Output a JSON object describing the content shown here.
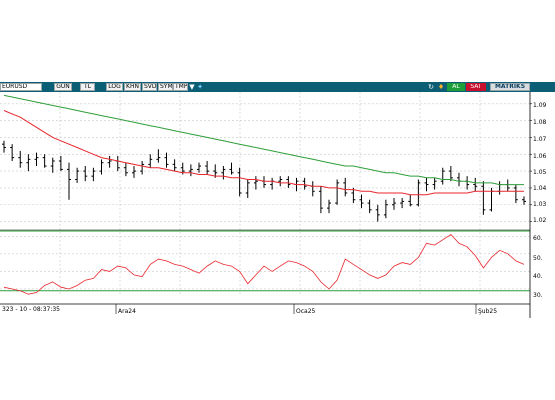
{
  "toolbar": {
    "symbol": "EURUSD",
    "buttons": [
      "GUN",
      "TL",
      "LOG",
      "KHN",
      "SVD",
      "SYM",
      "TMP"
    ],
    "buy_label": "AL",
    "sell_label": "SAT",
    "brand": "MATRIKS",
    "icons": [
      "triangle-down-icon",
      "bird-icon",
      "refresh-icon",
      "fire-icon"
    ]
  },
  "footer": {
    "datetime_label": "323 - 10 - 08:37:35"
  },
  "colors": {
    "toolbar": "#0b5e73",
    "price_bars": "#000000",
    "ma_short": "#e8262c",
    "ma_long": "#2e9e3a",
    "rsi": "#e8262c",
    "rsi_band": "#2e9e3a",
    "grid": "#c8c8c8"
  },
  "chart_data": [
    {
      "type": "ohlc",
      "name": "EURUSD",
      "y_ticks": [
        "1.09",
        "1.08",
        "1.07",
        "1.06",
        "1.05",
        "1.04",
        "1.03",
        "1.02"
      ],
      "ylim": [
        1.015,
        1.097
      ],
      "grid": true,
      "ohlc": [
        [
          1.066,
          1.068,
          1.061,
          1.064
        ],
        [
          1.064,
          1.066,
          1.056,
          1.058
        ],
        [
          1.058,
          1.062,
          1.052,
          1.055
        ],
        [
          1.055,
          1.06,
          1.05,
          1.057
        ],
        [
          1.057,
          1.061,
          1.053,
          1.058
        ],
        [
          1.058,
          1.06,
          1.052,
          1.053
        ],
        [
          1.053,
          1.058,
          1.049,
          1.056
        ],
        [
          1.056,
          1.059,
          1.05,
          1.051
        ],
        [
          1.051,
          1.055,
          1.033,
          1.045
        ],
        [
          1.045,
          1.052,
          1.043,
          1.05
        ],
        [
          1.05,
          1.053,
          1.044,
          1.047
        ],
        [
          1.047,
          1.052,
          1.044,
          1.05
        ],
        [
          1.05,
          1.057,
          1.048,
          1.055
        ],
        [
          1.055,
          1.059,
          1.052,
          1.056
        ],
        [
          1.056,
          1.059,
          1.05,
          1.052
        ],
        [
          1.052,
          1.055,
          1.047,
          1.049
        ],
        [
          1.049,
          1.053,
          1.046,
          1.05
        ],
        [
          1.05,
          1.056,
          1.048,
          1.054
        ],
        [
          1.054,
          1.06,
          1.052,
          1.057
        ],
        [
          1.057,
          1.063,
          1.055,
          1.058
        ],
        [
          1.058,
          1.061,
          1.052,
          1.054
        ],
        [
          1.054,
          1.057,
          1.05,
          1.052
        ],
        [
          1.052,
          1.055,
          1.048,
          1.05
        ],
        [
          1.05,
          1.054,
          1.047,
          1.051
        ],
        [
          1.051,
          1.055,
          1.049,
          1.053
        ],
        [
          1.053,
          1.056,
          1.048,
          1.05
        ],
        [
          1.05,
          1.054,
          1.046,
          1.049
        ],
        [
          1.049,
          1.053,
          1.045,
          1.051
        ],
        [
          1.051,
          1.055,
          1.048,
          1.049
        ],
        [
          1.049,
          1.052,
          1.035,
          1.037
        ],
        [
          1.037,
          1.045,
          1.034,
          1.043
        ],
        [
          1.043,
          1.047,
          1.039,
          1.044
        ],
        [
          1.044,
          1.047,
          1.04,
          1.042
        ],
        [
          1.042,
          1.046,
          1.039,
          1.044
        ],
        [
          1.044,
          1.047,
          1.041,
          1.045
        ],
        [
          1.045,
          1.047,
          1.04,
          1.042
        ],
        [
          1.042,
          1.046,
          1.038,
          1.044
        ],
        [
          1.044,
          1.046,
          1.039,
          1.041
        ],
        [
          1.041,
          1.044,
          1.035,
          1.038
        ],
        [
          1.038,
          1.041,
          1.025,
          1.028
        ],
        [
          1.028,
          1.033,
          1.025,
          1.031
        ],
        [
          1.031,
          1.045,
          1.03,
          1.043
        ],
        [
          1.043,
          1.046,
          1.035,
          1.037
        ],
        [
          1.037,
          1.04,
          1.031,
          1.033
        ],
        [
          1.033,
          1.036,
          1.028,
          1.031
        ],
        [
          1.031,
          1.033,
          1.025,
          1.027
        ],
        [
          1.027,
          1.03,
          1.02,
          1.024
        ],
        [
          1.024,
          1.033,
          1.022,
          1.03
        ],
        [
          1.03,
          1.034,
          1.027,
          1.031
        ],
        [
          1.031,
          1.034,
          1.028,
          1.032
        ],
        [
          1.032,
          1.036,
          1.029,
          1.03
        ],
        [
          1.03,
          1.045,
          1.029,
          1.043
        ],
        [
          1.043,
          1.046,
          1.038,
          1.042
        ],
        [
          1.042,
          1.046,
          1.039,
          1.044
        ],
        [
          1.044,
          1.052,
          1.042,
          1.05
        ],
        [
          1.05,
          1.053,
          1.044,
          1.046
        ],
        [
          1.046,
          1.049,
          1.041,
          1.044
        ],
        [
          1.044,
          1.047,
          1.039,
          1.042
        ],
        [
          1.042,
          1.046,
          1.038,
          1.041
        ],
        [
          1.041,
          1.044,
          1.024,
          1.027
        ],
        [
          1.027,
          1.04,
          1.026,
          1.038
        ],
        [
          1.038,
          1.044,
          1.036,
          1.042
        ],
        [
          1.042,
          1.045,
          1.038,
          1.04
        ],
        [
          1.04,
          1.042,
          1.031,
          1.033
        ],
        [
          1.033,
          1.035,
          1.03,
          1.032
        ]
      ],
      "ma_short": [
        1.086,
        1.084,
        1.082,
        1.079,
        1.076,
        1.073,
        1.07,
        1.068,
        1.066,
        1.064,
        1.062,
        1.06,
        1.058,
        1.057,
        1.056,
        1.055,
        1.054,
        1.053,
        1.052,
        1.052,
        1.051,
        1.05,
        1.049,
        1.049,
        1.048,
        1.048,
        1.047,
        1.047,
        1.046,
        1.046,
        1.045,
        1.045,
        1.044,
        1.044,
        1.043,
        1.043,
        1.042,
        1.042,
        1.041,
        1.041,
        1.04,
        1.04,
        1.039,
        1.039,
        1.038,
        1.038,
        1.037,
        1.037,
        1.037,
        1.037,
        1.036,
        1.036,
        1.036,
        1.037,
        1.037,
        1.037,
        1.037,
        1.037,
        1.038,
        1.038,
        1.038,
        1.038,
        1.038,
        1.038,
        1.038
      ],
      "ma_long": [
        1.095,
        1.094,
        1.093,
        1.092,
        1.091,
        1.09,
        1.089,
        1.088,
        1.087,
        1.086,
        1.085,
        1.084,
        1.083,
        1.082,
        1.081,
        1.08,
        1.079,
        1.078,
        1.077,
        1.076,
        1.075,
        1.074,
        1.073,
        1.072,
        1.071,
        1.07,
        1.069,
        1.068,
        1.067,
        1.066,
        1.065,
        1.064,
        1.063,
        1.062,
        1.061,
        1.06,
        1.059,
        1.058,
        1.057,
        1.056,
        1.055,
        1.054,
        1.053,
        1.053,
        1.052,
        1.051,
        1.05,
        1.049,
        1.049,
        1.048,
        1.047,
        1.047,
        1.046,
        1.046,
        1.045,
        1.045,
        1.044,
        1.044,
        1.043,
        1.043,
        1.043,
        1.042,
        1.042,
        1.042,
        1.042
      ]
    },
    {
      "type": "line",
      "name": "RSI",
      "y_ticks": [
        "60.",
        "50.",
        "40.",
        "30."
      ],
      "ylim": [
        26,
        63
      ],
      "bands": [
        63,
        29
      ],
      "values": [
        31,
        30,
        29,
        27,
        28,
        32,
        34,
        31,
        30,
        32,
        35,
        36,
        41,
        40,
        43,
        42,
        38,
        37,
        44,
        47,
        46,
        44,
        43,
        41,
        39,
        43,
        46,
        44,
        43,
        40,
        33,
        38,
        43,
        40,
        43,
        46,
        45,
        43,
        40,
        34,
        30,
        35,
        47,
        44,
        41,
        38,
        36,
        38,
        43,
        45,
        44,
        48,
        56,
        55,
        58,
        61,
        56,
        54,
        49,
        42,
        48,
        52,
        50,
        46,
        44
      ]
    }
  ],
  "x_labels": [
    "Ara24",
    "Oca25",
    "Şub25"
  ]
}
